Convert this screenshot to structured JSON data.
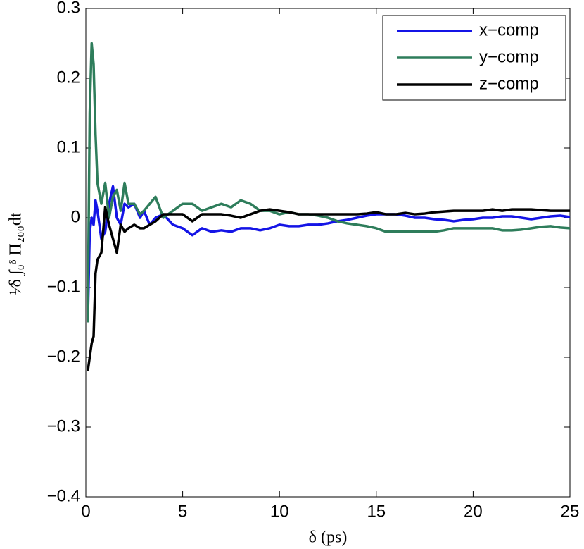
{
  "chart_data": {
    "type": "line",
    "xlabel": "δ (ps)",
    "ylabel": "¹⁄δ ∫₀ᵟ Π₂₀₀dt",
    "x": [
      0.1,
      0.2,
      0.3,
      0.4,
      0.5,
      0.6,
      0.8,
      1,
      1.2,
      1.4,
      1.6,
      1.8,
      2,
      2.2,
      2.5,
      2.8,
      3,
      3.3,
      3.6,
      4,
      4.5,
      5,
      5.5,
      6,
      6.5,
      7,
      7.5,
      8,
      8.5,
      9,
      9.5,
      10,
      10.5,
      11,
      11.5,
      12,
      12.5,
      13,
      13.5,
      14,
      14.5,
      15,
      15.5,
      16,
      16.5,
      17,
      17.5,
      18,
      18.5,
      19,
      19.5,
      20,
      20.5,
      21,
      21.5,
      22,
      22.5,
      23,
      23.5,
      24,
      24.5,
      25
    ],
    "series": [
      {
        "name": "x−comp",
        "color": "#1414e6",
        "values": [
          -0.15,
          -0.02,
          0,
          -0.01,
          0.025,
          0.01,
          -0.03,
          -0.02,
          0.02,
          0.045,
          0,
          -0.01,
          0.02,
          0.015,
          0.02,
          0,
          0.01,
          -0.01,
          0,
          0.005,
          -0.01,
          -0.015,
          -0.025,
          -0.015,
          -0.02,
          -0.018,
          -0.02,
          -0.015,
          -0.015,
          -0.018,
          -0.015,
          -0.01,
          -0.012,
          -0.012,
          -0.01,
          -0.01,
          -0.008,
          -0.005,
          -0.003,
          0,
          0.003,
          0.005,
          0.005,
          0.005,
          0.003,
          0,
          0,
          -0.002,
          -0.003,
          -0.005,
          -0.003,
          -0.002,
          0,
          0,
          0.002,
          0.002,
          0,
          -0.002,
          0,
          0.002,
          0.003,
          0.001
        ]
      },
      {
        "name": "y−comp",
        "color": "#2e7d5b",
        "values": [
          -0.15,
          0.15,
          0.25,
          0.22,
          0.12,
          0.05,
          0.02,
          0.05,
          0,
          0.03,
          0.04,
          0.01,
          0.05,
          0.02,
          0.02,
          0.005,
          0.01,
          0.02,
          0.03,
          0,
          0.01,
          0.02,
          0.02,
          0.01,
          0.015,
          0.02,
          0.015,
          0.025,
          0.02,
          0.01,
          0.01,
          0.005,
          0.008,
          0.005,
          0.005,
          0.003,
          0,
          -0.005,
          -0.008,
          -0.01,
          -0.012,
          -0.015,
          -0.02,
          -0.02,
          -0.02,
          -0.02,
          -0.02,
          -0.02,
          -0.018,
          -0.015,
          -0.015,
          -0.015,
          -0.015,
          -0.015,
          -0.018,
          -0.018,
          -0.017,
          -0.015,
          -0.013,
          -0.012,
          -0.014,
          -0.015
        ]
      },
      {
        "name": "z−comp",
        "color": "#000000",
        "values": [
          -0.22,
          -0.2,
          -0.18,
          -0.17,
          -0.08,
          -0.06,
          -0.05,
          0.015,
          -0.01,
          -0.03,
          -0.05,
          -0.01,
          -0.02,
          -0.015,
          -0.01,
          -0.015,
          -0.015,
          -0.01,
          -0.005,
          0.005,
          0.005,
          0.005,
          -0.005,
          0.005,
          0.005,
          0.005,
          0.003,
          0,
          0.005,
          0.01,
          0.012,
          0.01,
          0.008,
          0.005,
          0.005,
          0.005,
          0.005,
          0.005,
          0.005,
          0.005,
          0.006,
          0.008,
          0.005,
          0.005,
          0.007,
          0.005,
          0.006,
          0.008,
          0.009,
          0.01,
          0.01,
          0.01,
          0.01,
          0.012,
          0.01,
          0.012,
          0.012,
          0.012,
          0.011,
          0.01,
          0.01,
          0.01
        ]
      }
    ],
    "xlim": [
      0,
      25
    ],
    "xticks": [
      0,
      5,
      10,
      15,
      20,
      25
    ],
    "ylim": [
      -0.4,
      0.3
    ],
    "yticks": [
      {
        "value": -0.4,
        "label": "−0.4"
      },
      {
        "value": -0.3,
        "label": "−0.3"
      },
      {
        "value": -0.2,
        "label": "−0.2"
      },
      {
        "value": -0.1,
        "label": "−0.1"
      },
      0,
      0.1,
      0.2,
      0.3
    ],
    "legend": "top-right"
  }
}
